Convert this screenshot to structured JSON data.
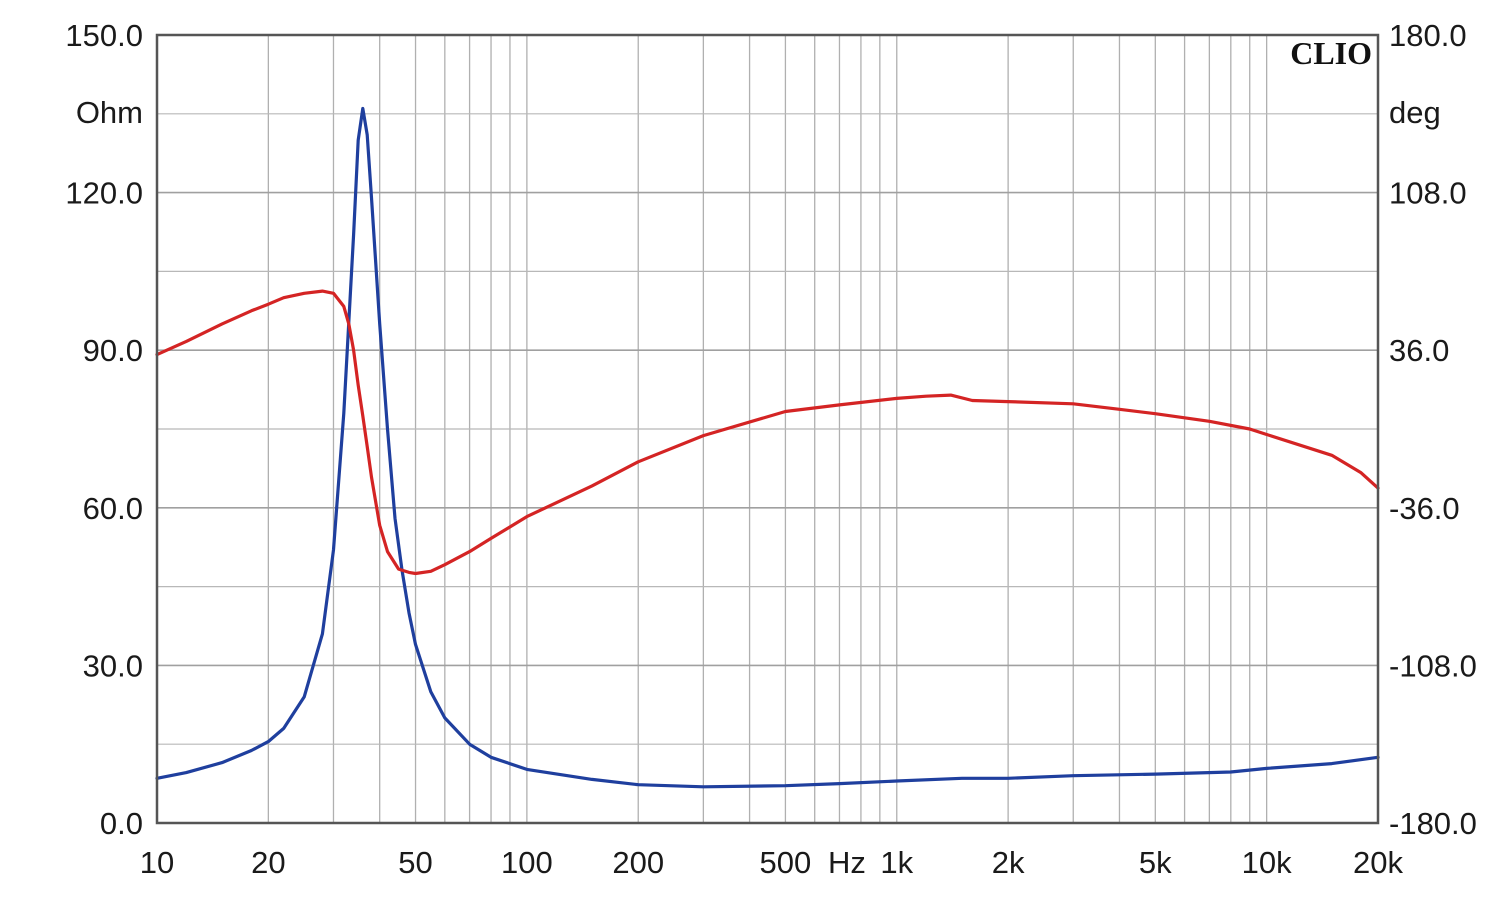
{
  "chart_data": {
    "type": "line",
    "brand": "CLIO",
    "x_scale": "log",
    "xlim": [
      10,
      20000
    ],
    "x_ticks": [
      {
        "value": 10,
        "label": "10"
      },
      {
        "value": 20,
        "label": "20"
      },
      {
        "value": 50,
        "label": "50"
      },
      {
        "value": 100,
        "label": "100"
      },
      {
        "value": 200,
        "label": "200"
      },
      {
        "value": 500,
        "label": "500"
      },
      {
        "value": 1000,
        "label": "1k"
      },
      {
        "value": 2000,
        "label": "2k"
      },
      {
        "value": 5000,
        "label": "5k"
      },
      {
        "value": 10000,
        "label": "10k"
      },
      {
        "value": 20000,
        "label": "20k"
      }
    ],
    "x_unit_label": "Hz",
    "y_left": {
      "unit": "Ohm",
      "range": [
        0,
        150
      ],
      "ticks": [
        {
          "value": 0,
          "label": "0.0"
        },
        {
          "value": 30,
          "label": "30.0"
        },
        {
          "value": 60,
          "label": "60.0"
        },
        {
          "value": 90,
          "label": "90.0"
        },
        {
          "value": 120,
          "label": "120.0"
        },
        {
          "value": 150,
          "label": "150.0"
        }
      ]
    },
    "y_right": {
      "unit": "deg",
      "range": [
        -180,
        180
      ],
      "ticks": [
        {
          "value": -180,
          "label": "-180.0"
        },
        {
          "value": -108,
          "label": "-108.0"
        },
        {
          "value": -36,
          "label": "-36.0"
        },
        {
          "value": 36,
          "label": "36.0"
        },
        {
          "value": 108,
          "label": "108.0"
        },
        {
          "value": 180,
          "label": "180.0"
        }
      ]
    },
    "grid": true,
    "series": [
      {
        "axis": "left",
        "color": "#1f3f9e",
        "x": [
          10,
          12,
          15,
          18,
          20,
          22,
          25,
          28,
          30,
          32,
          34,
          35,
          36,
          37,
          38,
          40,
          42,
          44,
          46,
          48,
          50,
          55,
          60,
          70,
          80,
          100,
          150,
          200,
          300,
          500,
          700,
          1000,
          1500,
          2000,
          3000,
          5000,
          8000,
          10000,
          15000,
          20000
        ],
        "y": [
          8.5,
          9.6,
          11.5,
          13.8,
          15.5,
          18,
          24,
          36,
          52,
          78,
          112,
          130,
          136,
          131,
          119,
          95,
          75,
          58,
          48,
          40,
          34,
          25,
          20,
          15,
          12.5,
          10.2,
          8.3,
          7.3,
          6.9,
          7.1,
          7.5,
          8.0,
          8.5,
          8.5,
          9.0,
          9.3,
          9.7,
          10.4,
          11.3,
          12.5
        ]
      },
      {
        "axis": "right",
        "color": "#d42424",
        "x": [
          10,
          12,
          15,
          18,
          20,
          22,
          25,
          28,
          30,
          32,
          33,
          34,
          35,
          36,
          37,
          38,
          40,
          42,
          45,
          48,
          50,
          55,
          60,
          70,
          80,
          100,
          150,
          200,
          300,
          500,
          700,
          1000,
          1200,
          1400,
          1600,
          2000,
          3000,
          4000,
          5000,
          7000,
          9000,
          10000,
          15000,
          18000,
          20000
        ],
        "y": [
          34,
          40,
          48,
          54,
          57,
          60,
          62,
          63,
          62,
          56,
          48,
          36,
          20,
          6,
          -8,
          -22,
          -44,
          -56,
          -64,
          -65.5,
          -66,
          -65,
          -62,
          -56,
          -50,
          -40,
          -26,
          -15,
          -3,
          8,
          11,
          14,
          15,
          15.5,
          13,
          12.5,
          11.5,
          9,
          7,
          3.5,
          0,
          -2.5,
          -12,
          -20,
          -27
        ]
      }
    ]
  }
}
